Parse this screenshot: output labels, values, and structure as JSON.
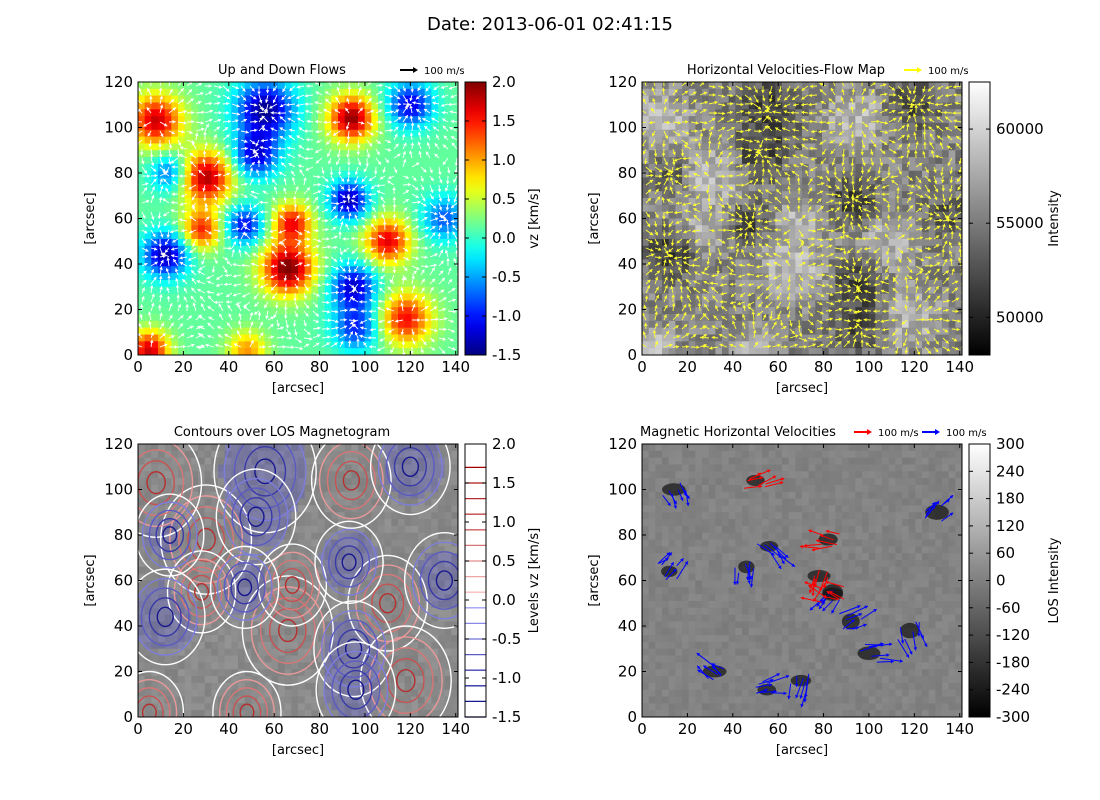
{
  "suptitle": "Date: 2013-06-01 02:41:15",
  "chart_data": [
    {
      "type": "heatmap",
      "title": "Up and Down Flows",
      "xlabel": "[arcsec]",
      "ylabel": "[arcsec]",
      "xlim": [
        0,
        141
      ],
      "ylim": [
        0,
        120
      ],
      "xticks": [
        0,
        20,
        40,
        60,
        80,
        100,
        120,
        140
      ],
      "yticks": [
        0,
        20,
        40,
        60,
        80,
        100,
        120
      ],
      "overlay": "white arrows (flow vectors)",
      "legend": {
        "arrow_label": "100 m/s",
        "arrow_color": "#000000",
        "placement": "top-right"
      },
      "colorbar": {
        "label": "vz [km/s]",
        "range": [
          -1.5,
          2.0
        ],
        "ticks": [
          -1.5,
          -1.0,
          -0.5,
          0.0,
          0.5,
          1.0,
          1.5,
          2.0
        ],
        "tick_labels": [
          "-1.5",
          "-1.0",
          "-0.5",
          "0.0",
          "0.5",
          "1.0",
          "1.5",
          "2.0"
        ],
        "colormap": "jet"
      }
    },
    {
      "type": "heatmap",
      "title": "Horizontal Velocities-Flow Map",
      "xlabel": "[arcsec]",
      "ylabel": "[arcsec]",
      "xlim": [
        0,
        141
      ],
      "ylim": [
        0,
        120
      ],
      "xticks": [
        0,
        20,
        40,
        60,
        80,
        100,
        120,
        140
      ],
      "yticks": [
        0,
        20,
        40,
        60,
        80,
        100,
        120
      ],
      "overlay": "yellow arrows (horizontal flow vectors)",
      "legend": {
        "arrow_label": "100 m/s",
        "arrow_color": "#ffff00",
        "placement": "top-right"
      },
      "colorbar": {
        "label": "Intensity",
        "range": [
          48000,
          62500
        ],
        "ticks": [
          50000,
          55000,
          60000
        ],
        "tick_labels": [
          "50000",
          "55000",
          "60000"
        ],
        "colormap": "gray"
      }
    },
    {
      "type": "heatmap",
      "title": "Contours over LOS Magnetogram",
      "xlabel": "[arcsec]",
      "ylabel": "[arcsec]",
      "xlim": [
        0,
        141
      ],
      "ylim": [
        0,
        120
      ],
      "xticks": [
        0,
        20,
        40,
        60,
        80,
        100,
        120,
        140
      ],
      "yticks": [
        0,
        20,
        40,
        60,
        80,
        100,
        120
      ],
      "overlay": "vz contours (red positive, blue negative)",
      "colorbar": {
        "label": "Levels vz [km/s]",
        "range": [
          -1.5,
          2.0
        ],
        "ticks": [
          -1.5,
          -1.0,
          -0.5,
          0.0,
          0.5,
          1.0,
          1.5,
          2.0
        ],
        "tick_labels": [
          "-1.5",
          "-1.0",
          "-0.5",
          "0.0",
          "0.5",
          "1.0",
          "1.5",
          "2.0"
        ],
        "levels": [
          -1.5,
          -1.3,
          -1.1,
          -0.9,
          -0.7,
          -0.5,
          -0.3,
          -0.1,
          0.1,
          0.3,
          0.5,
          0.7,
          0.9,
          1.1,
          1.3,
          1.5,
          1.7
        ],
        "colormap": "seismic"
      }
    },
    {
      "type": "heatmap",
      "title": "Magnetic Horizontal Velocities",
      "xlabel": "[arcsec]",
      "ylabel": "[arcsec]",
      "xlim": [
        0,
        141
      ],
      "ylim": [
        0,
        120
      ],
      "xticks": [
        0,
        20,
        40,
        60,
        80,
        100,
        120,
        140
      ],
      "yticks": [
        0,
        20,
        40,
        60,
        80,
        100,
        120
      ],
      "overlay": "red/blue arrows at magnetic regions",
      "legend": [
        {
          "arrow_label": "100 m/s",
          "arrow_color": "#ff0000"
        },
        {
          "arrow_label": "100 m/s",
          "arrow_color": "#0000ff"
        }
      ],
      "colorbar": {
        "label": "LOS Intensity",
        "range": [
          -300,
          300
        ],
        "ticks": [
          -300,
          -240,
          -180,
          -120,
          -60,
          0,
          60,
          120,
          180,
          240,
          300
        ],
        "tick_labels": [
          "-300",
          "-240",
          "-180",
          "-120",
          "-60",
          "0",
          "60",
          "120",
          "180",
          "240",
          "300"
        ],
        "colormap": "gray"
      }
    }
  ]
}
